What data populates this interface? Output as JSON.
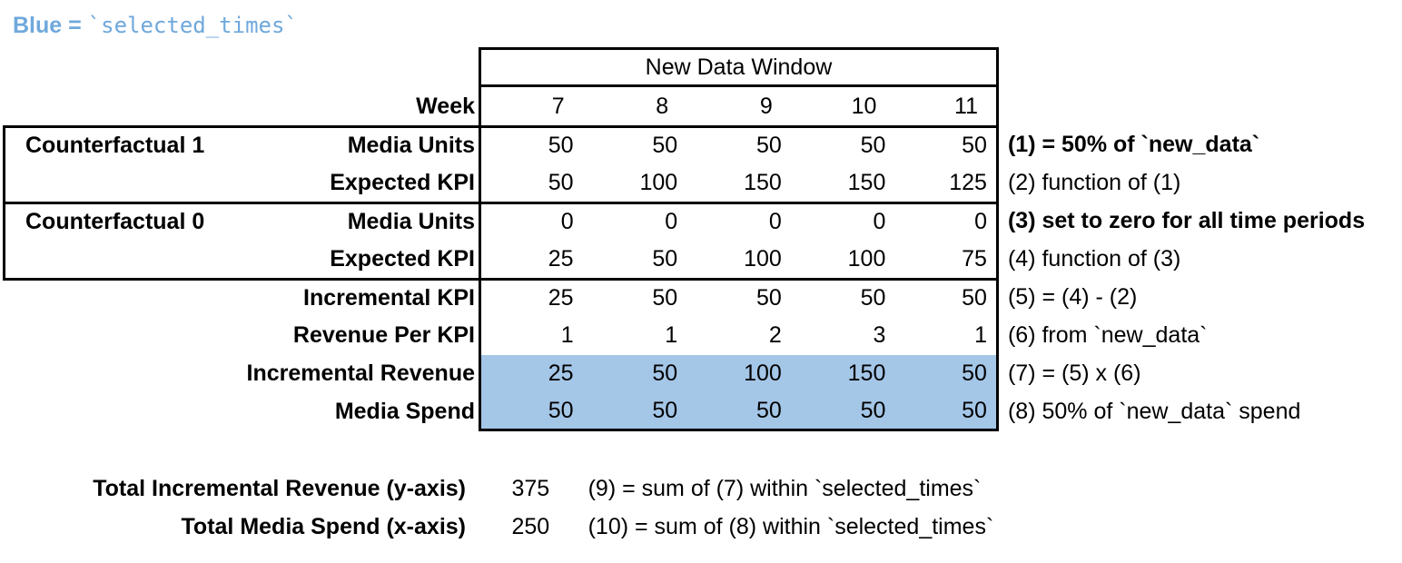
{
  "legend": {
    "label": "Blue = ",
    "code": "`selected_times`"
  },
  "colors": {
    "legend_blue": "#6fa8dc",
    "highlight": "#a4c6e7",
    "border": "#000000"
  },
  "table": {
    "window_label": "New Data Window",
    "week_label": "Week",
    "weeks": [
      "7",
      "8",
      "9",
      "10",
      "11"
    ],
    "rows": [
      {
        "group": "Counterfactual 1",
        "label": "Media Units",
        "values": [
          "50",
          "50",
          "50",
          "50",
          "50"
        ],
        "note": "(1) = 50% of `new_data`",
        "note_bold": true,
        "highlight": false
      },
      {
        "group": "",
        "label": "Expected KPI",
        "values": [
          "50",
          "100",
          "150",
          "150",
          "125"
        ],
        "note": "(2) function of (1)",
        "note_bold": false,
        "highlight": false
      },
      {
        "group": "Counterfactual 0",
        "label": "Media Units",
        "values": [
          "0",
          "0",
          "0",
          "0",
          "0"
        ],
        "note": "(3) set to zero for all time periods",
        "note_bold": true,
        "highlight": false
      },
      {
        "group": "",
        "label": "Expected KPI",
        "values": [
          "25",
          "50",
          "100",
          "100",
          "75"
        ],
        "note": "(4) function of (3)",
        "note_bold": false,
        "highlight": false
      },
      {
        "group": "",
        "label": "Incremental KPI",
        "values": [
          "25",
          "50",
          "50",
          "50",
          "50"
        ],
        "note": "(5) = (4) - (2)",
        "note_bold": false,
        "highlight": false
      },
      {
        "group": "",
        "label": "Revenue Per KPI",
        "values": [
          "1",
          "1",
          "2",
          "3",
          "1"
        ],
        "note": "(6) from `new_data`",
        "note_bold": false,
        "highlight": false
      },
      {
        "group": "",
        "label": "Incremental Revenue",
        "values": [
          "25",
          "50",
          "100",
          "150",
          "50"
        ],
        "note": "(7) = (5) x (6)",
        "note_bold": false,
        "highlight": true
      },
      {
        "group": "",
        "label": "Media Spend",
        "values": [
          "50",
          "50",
          "50",
          "50",
          "50"
        ],
        "note": "(8) 50% of `new_data` spend",
        "note_bold": false,
        "highlight": true
      }
    ]
  },
  "totals": [
    {
      "label": "Total Incremental Revenue (y-axis)",
      "value": "375",
      "note": "(9) = sum of (7) within `selected_times`"
    },
    {
      "label": "Total Media Spend (x-axis)",
      "value": "250",
      "note": "(10) = sum of (8) within `selected_times`"
    }
  ]
}
